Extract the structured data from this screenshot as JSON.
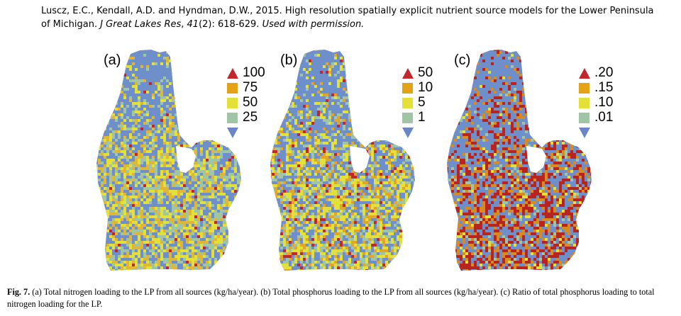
{
  "citation": {
    "authors": "Luscz, E.C., Kendall, A.D. and Hyndman,  D.W., 2015. High resolution  spatially explicit nutrient source models for the Lower Peninsula",
    "line2_prefix": "of Michigan. ",
    "journal": "J Great Lakes Res",
    "vol_sep": ", ",
    "volume": "41",
    "issue_pages": "(2): 618-629.  ",
    "permission": "Used with permission."
  },
  "colors": {
    "very_high": "#c1272d",
    "high": "#e3a317",
    "mid": "#e3e03a",
    "low": "#9fc5a4",
    "very_low": "#6a86c6"
  },
  "panels": [
    {
      "label": "(a)",
      "legend": [
        "100",
        "75",
        "50",
        "25"
      ],
      "palette": [
        "#6f8fcb",
        "#9fc5a4",
        "#e3e03a",
        "#e0b637",
        "#c1272d"
      ],
      "weights": [
        0.3,
        0.22,
        0.25,
        0.2,
        0.03
      ]
    },
    {
      "label": "(b)",
      "legend": [
        "50",
        "10",
        "5",
        "1"
      ],
      "palette": [
        "#6f8fcb",
        "#9fc5a4",
        "#e3e03a",
        "#e0a52a",
        "#c1272d"
      ],
      "weights": [
        0.35,
        0.17,
        0.28,
        0.14,
        0.06
      ]
    },
    {
      "label": "(c)",
      "legend": [
        ".20",
        ".15",
        ".10",
        ".01"
      ],
      "palette": [
        "#6f8fcb",
        "#9fc5a4",
        "#e3e03a",
        "#d98b23",
        "#b8241f"
      ],
      "weights": [
        0.38,
        0.06,
        0.05,
        0.2,
        0.31
      ]
    }
  ],
  "caption": {
    "fig": "Fig. 7.",
    "text": " (a) Total nitrogen loading to the LP from all sources (kg/ha/year). (b) Total phosphorus loading to the LP from all sources (kg/ha/year). (c) Ratio of total phosphorus loading to total nitrogen loading for the LP."
  }
}
